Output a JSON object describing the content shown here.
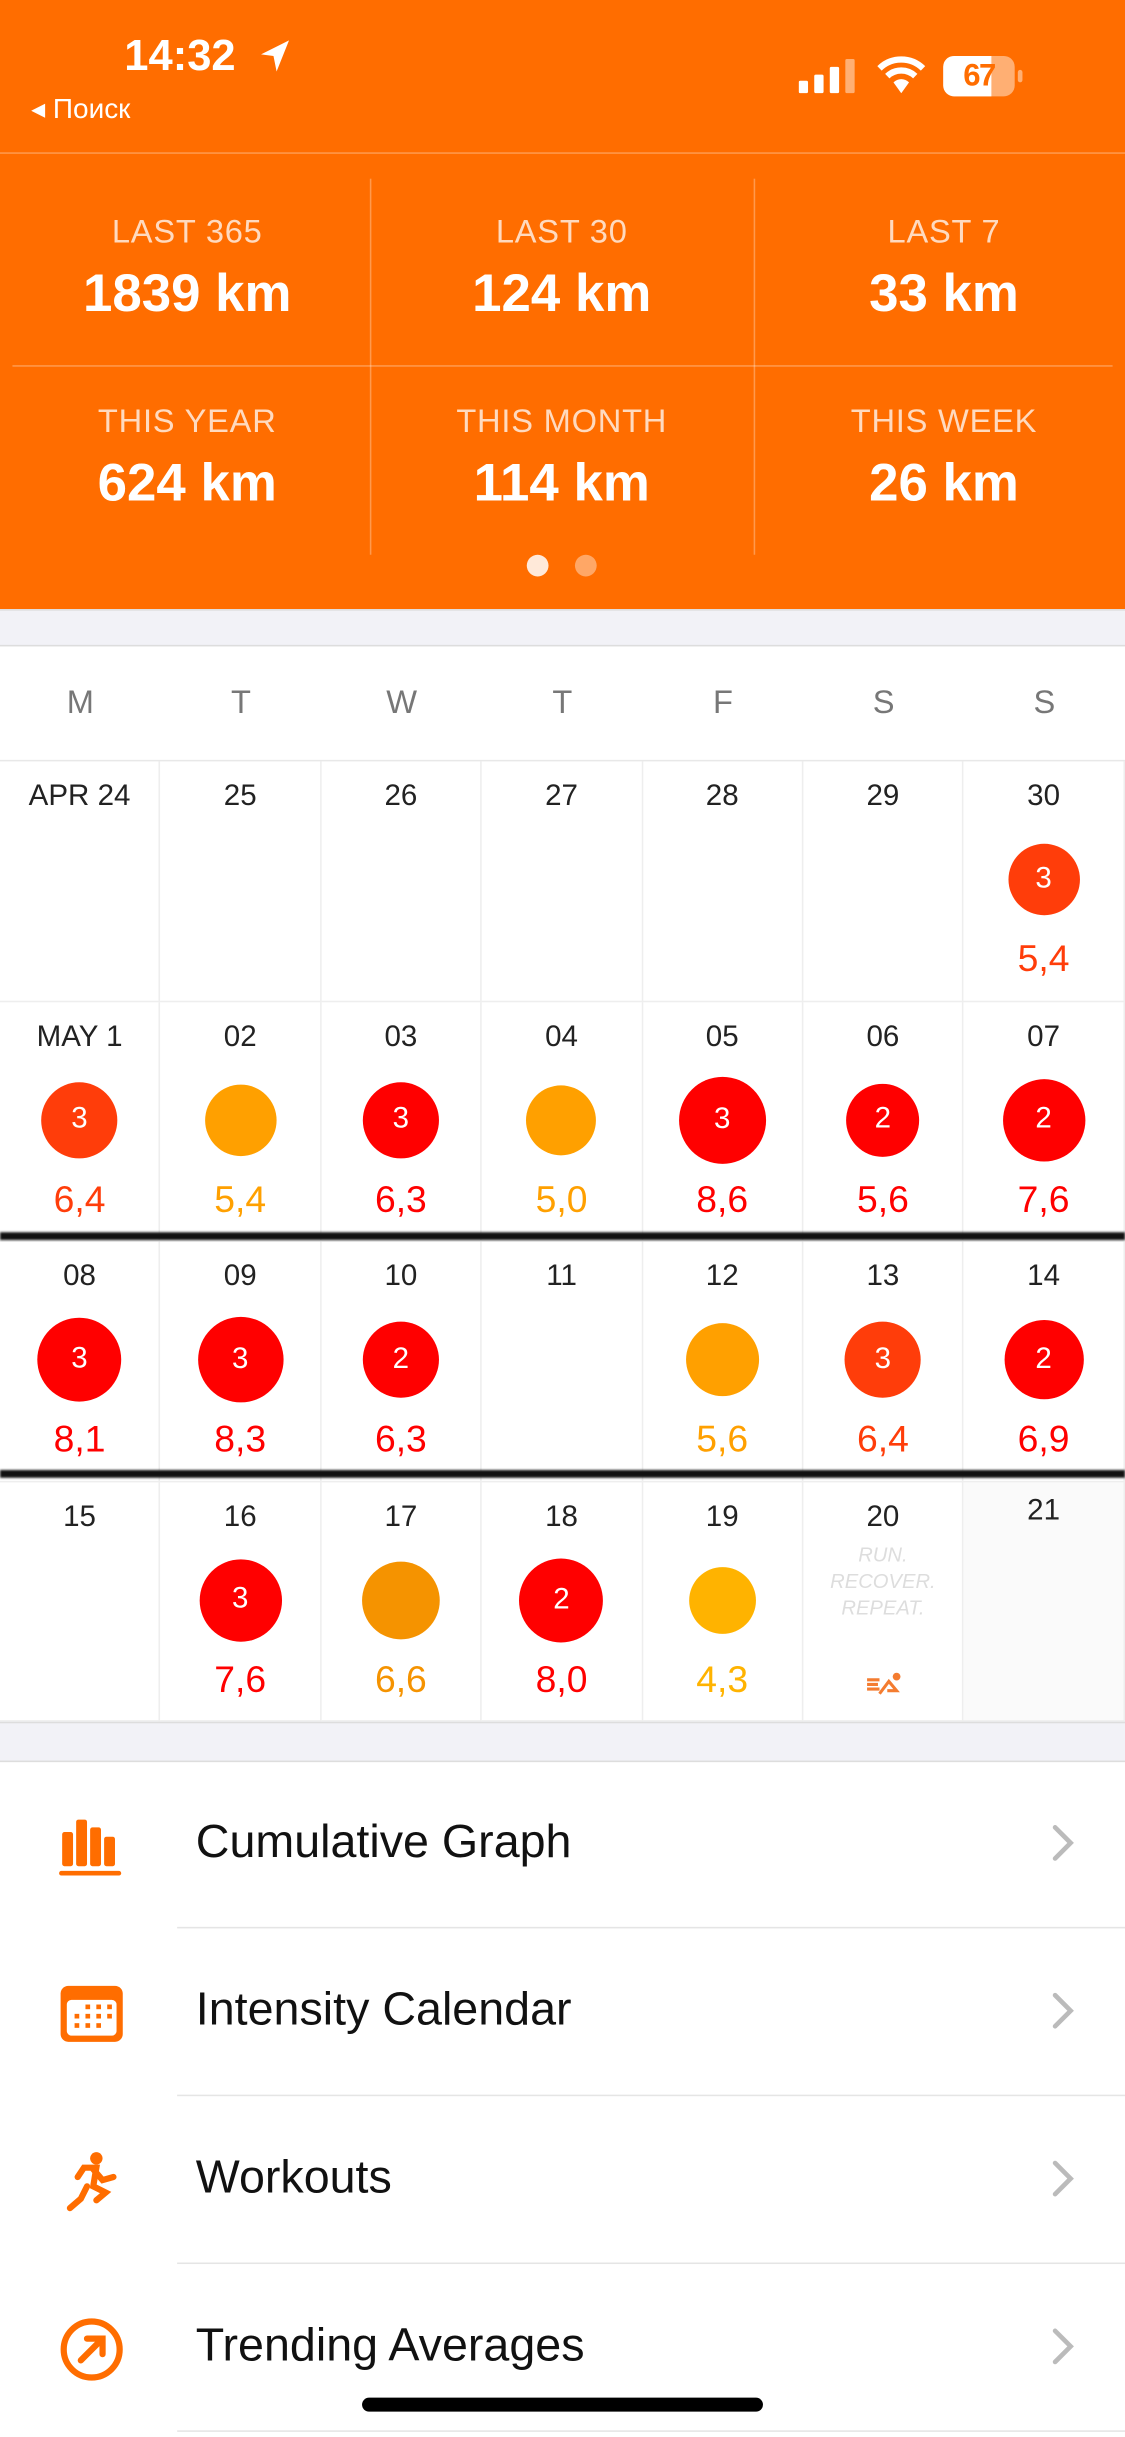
{
  "status_bar": {
    "time": "14:32",
    "back_label": "Поиск",
    "battery": "67"
  },
  "stats": [
    {
      "label": "LAST 365",
      "value": "1839 km"
    },
    {
      "label": "LAST 30",
      "value": "124 km"
    },
    {
      "label": "LAST 7",
      "value": "33 km"
    },
    {
      "label": "THIS YEAR",
      "value": "624 km"
    },
    {
      "label": "THIS MONTH",
      "value": "114 km"
    },
    {
      "label": "THIS WEEK",
      "value": "26 km"
    }
  ],
  "pager": {
    "pages": 2,
    "current": 1
  },
  "weekdays": [
    "M",
    "T",
    "W",
    "T",
    "F",
    "S",
    "S"
  ],
  "colors": {
    "brand": "#ff6d00",
    "red": "#ff0000",
    "redorange": "#ff3d0a",
    "orange": "#ffa000",
    "darkorange": "#f59300",
    "amber": "#ffb300"
  },
  "calendar": [
    [
      {
        "day": "APR 24"
      },
      {
        "day": "25"
      },
      {
        "day": "26"
      },
      {
        "day": "27"
      },
      {
        "day": "28"
      },
      {
        "day": "29"
      },
      {
        "day": "30",
        "count": "3",
        "km": "5,4",
        "color": "redorange"
      }
    ],
    [
      {
        "day": "MAY 1",
        "count": "3",
        "km": "6,4",
        "color": "redorange"
      },
      {
        "day": "02",
        "count": "",
        "km": "5,4",
        "color": "orange"
      },
      {
        "day": "03",
        "count": "3",
        "km": "6,3",
        "color": "red"
      },
      {
        "day": "04",
        "count": "",
        "km": "5,0",
        "color": "orange"
      },
      {
        "day": "05",
        "count": "3",
        "km": "8,6",
        "color": "red"
      },
      {
        "day": "06",
        "count": "2",
        "km": "5,6",
        "color": "red"
      },
      {
        "day": "07",
        "count": "2",
        "km": "7,6",
        "color": "red"
      }
    ],
    [
      {
        "day": "08",
        "count": "3",
        "km": "8,1",
        "color": "red"
      },
      {
        "day": "09",
        "count": "3",
        "km": "8,3",
        "color": "red"
      },
      {
        "day": "10",
        "count": "2",
        "km": "6,3",
        "color": "red"
      },
      {
        "day": "11"
      },
      {
        "day": "12",
        "count": "",
        "km": "5,6",
        "color": "orange"
      },
      {
        "day": "13",
        "count": "3",
        "km": "6,4",
        "color": "redorange"
      },
      {
        "day": "14",
        "count": "2",
        "km": "6,9",
        "color": "red"
      }
    ],
    [
      {
        "day": "15"
      },
      {
        "day": "16",
        "count": "3",
        "km": "7,6",
        "color": "red"
      },
      {
        "day": "17",
        "count": "",
        "km": "6,6",
        "color": "darkorange"
      },
      {
        "day": "18",
        "count": "2",
        "km": "8,0",
        "color": "red"
      },
      {
        "day": "19",
        "count": "",
        "km": "4,3",
        "color": "amber"
      },
      {
        "day": "20",
        "motto": [
          "RUN.",
          "RECOVER.",
          "REPEAT."
        ]
      },
      {
        "day": "21",
        "future": true
      }
    ]
  ],
  "menu": [
    {
      "label": "Cumulative Graph",
      "icon": "bar-chart-icon"
    },
    {
      "label": "Intensity Calendar",
      "icon": "calendar-icon"
    },
    {
      "label": "Workouts",
      "icon": "runner-icon"
    },
    {
      "label": "Trending Averages",
      "icon": "trend-arrow-icon"
    }
  ]
}
